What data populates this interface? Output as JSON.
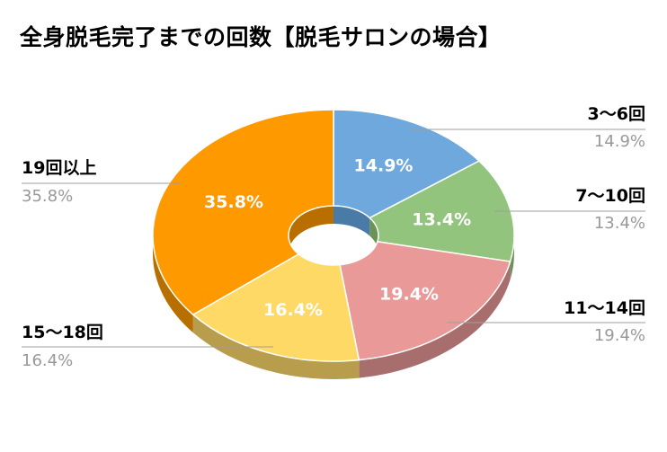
{
  "chart_data": {
    "type": "pie",
    "style": "3d-donut",
    "title": "全身脱毛完了までの回数【脱毛サロンの場合】",
    "legend": "none (leader-line labels around chart)",
    "slices": [
      {
        "label": "3〜6回",
        "value": 14.9,
        "display": "14.9%",
        "color": "#6fa8dc",
        "side": "#4a7aa6"
      },
      {
        "label": "7〜10回",
        "value": 13.4,
        "display": "13.4%",
        "color": "#93c47d",
        "side": "#6b9358"
      },
      {
        "label": "11〜14回",
        "value": 19.4,
        "display": "19.4%",
        "color": "#ea9999",
        "side": "#a86e6e"
      },
      {
        "label": "15〜18回",
        "value": 16.4,
        "display": "16.4%",
        "color": "#ffd966",
        "side": "#b89e4c"
      },
      {
        "label": "19回以上",
        "value": 35.8,
        "display": "35.8%",
        "color": "#ff9900",
        "side": "#b86f00"
      }
    ]
  }
}
